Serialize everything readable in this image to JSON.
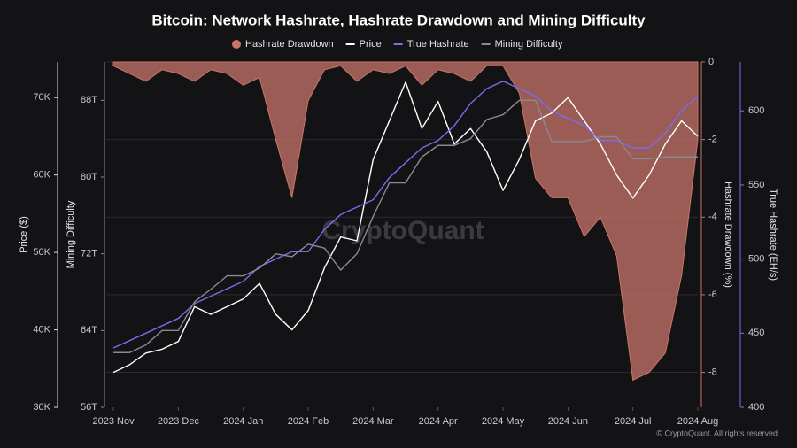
{
  "chart_data": {
    "type": "line",
    "title": "Bitcoin: Network Hashrate, Hashrate Drawdown and Mining Difficulty",
    "watermark": "CryptoQuant",
    "footer": "© CryptoQuant. All rights reserved",
    "xlim": [
      -0.11,
      9
    ],
    "xticks": [
      {
        "value": 0,
        "label": "2023 Nov"
      },
      {
        "value": 1,
        "label": "2023 Dec"
      },
      {
        "value": 2,
        "label": "2024 Jan"
      },
      {
        "value": 3,
        "label": "2024 Feb"
      },
      {
        "value": 4,
        "label": "2024 Mar"
      },
      {
        "value": 5,
        "label": "2024 Apr"
      },
      {
        "value": 6,
        "label": "2024 May"
      },
      {
        "value": 7,
        "label": "2024 Jun"
      },
      {
        "value": 8,
        "label": "2024 Jul"
      },
      {
        "value": 9,
        "label": "2024 Aug"
      }
    ],
    "x": [
      0,
      0.25,
      0.5,
      0.75,
      1,
      1.25,
      1.5,
      1.75,
      2,
      2.25,
      2.5,
      2.75,
      3,
      3.25,
      3.5,
      3.75,
      4,
      4.25,
      4.5,
      4.75,
      5,
      5.25,
      5.5,
      5.75,
      6,
      6.25,
      6.5,
      6.75,
      7,
      7.25,
      7.5,
      7.75,
      8,
      8.25,
      8.5,
      8.75,
      9
    ],
    "grid": "y3",
    "axes": {
      "y": {
        "label": "Price ($)",
        "lim": [
          30000,
          74600
        ],
        "color": "#d8d8dc",
        "ticks": [
          {
            "value": 30000,
            "label": "30K"
          },
          {
            "value": 40000,
            "label": "40K"
          },
          {
            "value": 50000,
            "label": "50K"
          },
          {
            "value": 60000,
            "label": "60K"
          },
          {
            "value": 70000,
            "label": "70K"
          }
        ]
      },
      "y2": {
        "label": "Mining Difficulty",
        "lim": [
          56,
          92
        ],
        "color": "#8a8a90",
        "ticks": [
          {
            "value": 56,
            "label": "56T"
          },
          {
            "value": 64,
            "label": "64T"
          },
          {
            "value": 72,
            "label": "72T"
          },
          {
            "value": 80,
            "label": "80T"
          },
          {
            "value": 88,
            "label": "88T"
          }
        ]
      },
      "y3": {
        "label": "Hashrate Drawdown (%)",
        "lim": [
          -8.9,
          0
        ],
        "color": "#c8766a",
        "ticks": [
          0,
          -2,
          -4,
          -6,
          -8
        ]
      },
      "y4": {
        "label": "True Hashrate (EH/s)",
        "lim": [
          400,
          633
        ],
        "color": "#7b6cf0",
        "ticks": [
          400,
          450,
          500,
          550,
          600
        ]
      }
    },
    "series": [
      {
        "name": "Hashrate Drawdown",
        "type": "area",
        "axis": "y3",
        "color": "#c8766a",
        "values": [
          -0.1,
          -0.3,
          -0.5,
          -0.2,
          -0.3,
          -0.5,
          -0.2,
          -0.3,
          -0.6,
          -0.4,
          -2,
          -3.5,
          -1,
          -0.2,
          -0.1,
          -0.5,
          -0.2,
          -0.3,
          -0.1,
          -0.6,
          -0.2,
          -0.3,
          -0.5,
          -0.1,
          -0.1,
          -0.8,
          -3,
          -3.5,
          -3.5,
          -4.5,
          -4,
          -5,
          -8.2,
          -8,
          -7.5,
          -5.5,
          -2
        ]
      },
      {
        "name": "Price",
        "type": "line",
        "axis": "y",
        "color": "#ffffff",
        "values": [
          34500,
          35500,
          37000,
          37500,
          38500,
          43000,
          42000,
          43000,
          44000,
          46000,
          42000,
          40000,
          42500,
          48000,
          52000,
          51500,
          62000,
          67000,
          72000,
          66000,
          69500,
          64000,
          66000,
          63000,
          58000,
          62000,
          67000,
          68000,
          70000,
          67000,
          64000,
          60000,
          57000,
          60000,
          64000,
          67000,
          65000
        ]
      },
      {
        "name": "True Hashrate",
        "type": "line",
        "axis": "y4",
        "color": "#7b6cf0",
        "values": [
          440,
          445,
          450,
          455,
          460,
          470,
          475,
          480,
          485,
          495,
          500,
          505,
          505,
          520,
          530,
          535,
          540,
          555,
          565,
          575,
          580,
          590,
          605,
          615,
          620,
          615,
          610,
          600,
          595,
          590,
          580,
          580,
          575,
          575,
          585,
          600,
          610
        ]
      },
      {
        "name": "Mining Difficulty",
        "type": "line",
        "axis": "y2",
        "color": "#8a8a90",
        "values": [
          61.7,
          61.7,
          62.5,
          64,
          64,
          67,
          68.3,
          69.7,
          69.7,
          70.5,
          72,
          71.7,
          73,
          72.6,
          70.3,
          72,
          75.9,
          79.4,
          79.4,
          82.1,
          83.3,
          83.3,
          84,
          86,
          86.5,
          88,
          88,
          83.7,
          83.7,
          83.7,
          84.2,
          84.2,
          81.9,
          81.9,
          82.1,
          82.1,
          82.1
        ]
      }
    ]
  }
}
